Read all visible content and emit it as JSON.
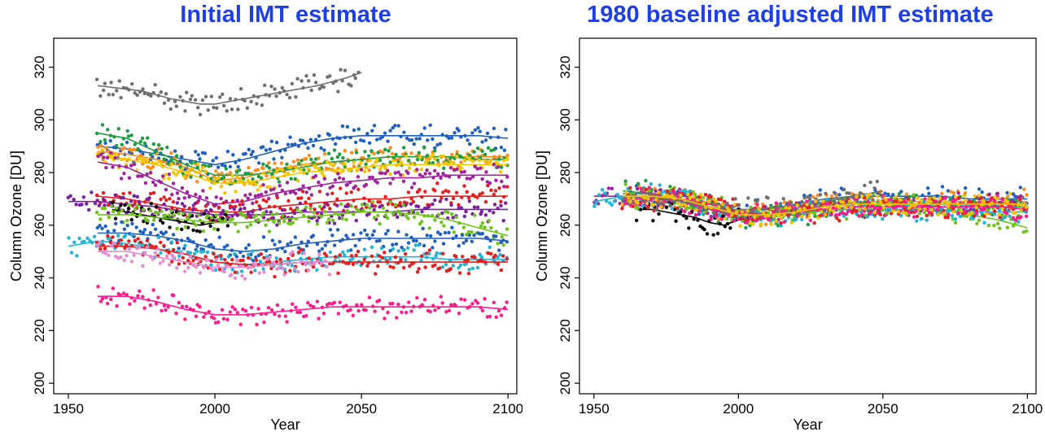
{
  "chart_data": [
    {
      "type": "scatter",
      "title": "Initial IMT estimate",
      "xlabel": "Year",
      "ylabel": "Column Ozone [DU]",
      "xlim": [
        1945,
        2103
      ],
      "ylim": [
        196,
        331
      ],
      "xticks": [
        1950,
        2000,
        2050,
        2100
      ],
      "yticks": [
        200,
        220,
        240,
        260,
        280,
        300,
        320
      ],
      "grid": false,
      "legend": "none",
      "series": [
        {
          "color": "#6e6e6e",
          "x": [
            1960,
            1975,
            1985,
            1995,
            2000,
            2005,
            2015,
            2025,
            2035,
            2045,
            2050
          ],
          "y": [
            313,
            311,
            308,
            306,
            306,
            307,
            309,
            311,
            313,
            316,
            318
          ]
        },
        {
          "color": "#1f5fbf",
          "x": [
            1960,
            1970,
            1980,
            1990,
            2000,
            2010,
            2020,
            2030,
            2040,
            2050,
            2060,
            2070,
            2080,
            2090,
            2100
          ],
          "y": [
            290,
            289,
            287,
            285,
            283,
            285,
            288,
            291,
            293,
            294,
            294,
            294,
            294,
            294,
            293
          ]
        },
        {
          "color": "#ff8c1a",
          "x": [
            1960,
            1970,
            1980,
            1990,
            2000,
            2010,
            2020,
            2030,
            2040,
            2050,
            2060,
            2070,
            2080,
            2090,
            2100
          ],
          "y": [
            288,
            287,
            285,
            282,
            277,
            278,
            281,
            283,
            284,
            285,
            286,
            286,
            286,
            286,
            286
          ]
        },
        {
          "color": "#1a9e3f",
          "x": [
            1960,
            1970,
            1980,
            1990,
            2000,
            2010,
            2020,
            2030,
            2040,
            2050,
            2060,
            2070,
            2080,
            2090,
            2100
          ],
          "y": [
            295,
            293,
            288,
            283,
            279,
            279,
            280,
            282,
            284,
            285,
            286,
            286,
            286,
            285,
            285
          ]
        },
        {
          "color": "#f5c400",
          "x": [
            1960,
            1970,
            1980,
            1990,
            2000,
            2010,
            2020,
            2030,
            2040,
            2050,
            2060,
            2070,
            2080,
            2090,
            2100
          ],
          "y": [
            286,
            285,
            283,
            280,
            276,
            276,
            278,
            280,
            281,
            282,
            283,
            283,
            283,
            283,
            283
          ]
        },
        {
          "color": "#a0229f",
          "x": [
            1960,
            1970,
            1980,
            1990,
            2000,
            2010,
            2020,
            2030,
            2040,
            2050,
            2060,
            2070,
            2080,
            2090,
            2100
          ],
          "y": [
            284,
            282,
            277,
            272,
            268,
            269,
            272,
            274,
            276,
            277,
            278,
            278,
            279,
            279,
            279
          ]
        },
        {
          "color": "#e81c1c",
          "x": [
            1960,
            1970,
            1980,
            1990,
            2000,
            2010,
            2020,
            2030,
            2040,
            2050,
            2060,
            2070,
            2080,
            2090,
            2100
          ],
          "y": [
            271,
            270,
            268,
            266,
            265,
            265,
            267,
            268,
            269,
            270,
            270,
            271,
            271,
            271,
            271
          ]
        },
        {
          "color": "#7a1fa0",
          "x": [
            1950,
            1960,
            1970,
            1980,
            1990,
            2000,
            2010,
            2020,
            2030,
            2040,
            2050,
            2060,
            2070,
            2080,
            2090,
            2100
          ],
          "y": [
            269,
            269,
            268,
            267,
            265,
            264,
            264,
            264,
            265,
            265,
            265,
            265,
            266,
            266,
            266,
            266
          ]
        },
        {
          "color": "#000000",
          "x": [
            1965,
            1970,
            1975,
            1980,
            1985,
            1990,
            1995,
            2000,
            2005
          ],
          "y": [
            266,
            265,
            264,
            263,
            262,
            261,
            260,
            261,
            262
          ]
        },
        {
          "color": "#6fc41a",
          "x": [
            1960,
            1970,
            1980,
            1990,
            2000,
            2010,
            2020,
            2030,
            2040,
            2050,
            2060,
            2070,
            2080,
            2090,
            2100
          ],
          "y": [
            264,
            264,
            263,
            262,
            261,
            261,
            262,
            263,
            264,
            265,
            265,
            264,
            262,
            259,
            256
          ]
        },
        {
          "color": "#1f5fbf",
          "x": [
            1960,
            1970,
            1980,
            1990,
            2000,
            2010,
            2020,
            2030,
            2040,
            2050,
            2060,
            2070,
            2080,
            2090,
            2100
          ],
          "y": [
            257,
            257,
            256,
            254,
            251,
            250,
            251,
            253,
            254,
            255,
            255,
            255,
            255,
            255,
            254
          ]
        },
        {
          "color": "#20b5d6",
          "x": [
            1950,
            1960,
            1970,
            1980,
            1990,
            2000,
            2010,
            2020,
            2030,
            2040,
            2050,
            2060,
            2070,
            2080,
            2090,
            2100
          ],
          "y": [
            252,
            254,
            253,
            251,
            249,
            246,
            245,
            246,
            247,
            248,
            248,
            248,
            248,
            247,
            247,
            247
          ]
        },
        {
          "color": "#e81c1c",
          "x": [
            1960,
            1970,
            1980,
            1990,
            2000,
            2010,
            2020,
            2030,
            2040,
            2050,
            2060,
            2070,
            2080,
            2090,
            2100
          ],
          "y": [
            252,
            252,
            251,
            249,
            246,
            245,
            245,
            246,
            246,
            246,
            246,
            246,
            246,
            246,
            246
          ]
        },
        {
          "color": "#e68ad1",
          "x": [
            1960,
            1970,
            1980,
            1990,
            2000,
            2010,
            2020,
            2030,
            2040
          ],
          "y": [
            250,
            250,
            248,
            246,
            244,
            244,
            245,
            246,
            246
          ]
        },
        {
          "color": "#ff1a8c",
          "x": [
            1960,
            1970,
            1980,
            1990,
            2000,
            2010,
            2020,
            2030,
            2040,
            2050,
            2060,
            2070,
            2080,
            2090,
            2100
          ],
          "y": [
            233,
            233,
            231,
            228,
            226,
            226,
            227,
            228,
            229,
            229,
            229,
            229,
            229,
            229,
            228
          ]
        }
      ]
    },
    {
      "type": "scatter",
      "title": "1980 baseline adjusted IMT estimate",
      "xlabel": "Year",
      "ylabel": "Column Ozone [DU]",
      "xlim": [
        1945,
        2103
      ],
      "ylim": [
        196,
        331
      ],
      "xticks": [
        1950,
        2000,
        2050,
        2100
      ],
      "yticks": [
        200,
        220,
        240,
        260,
        280,
        300,
        320
      ],
      "grid": false,
      "legend": "none",
      "series": [
        {
          "color": "#1f5fbf",
          "x": [
            1960,
            1970,
            1980,
            1990,
            2000,
            2010,
            2020,
            2030,
            2040,
            2050,
            2060,
            2070,
            2080,
            2090,
            2100
          ],
          "y": [
            272,
            272,
            270,
            267,
            265,
            266,
            268,
            270,
            271,
            271,
            271,
            271,
            270,
            270,
            270
          ]
        },
        {
          "color": "#ff8c1a",
          "x": [
            1960,
            1970,
            1980,
            1990,
            2000,
            2010,
            2020,
            2030,
            2040,
            2050,
            2060,
            2070,
            2080,
            2090,
            2100
          ],
          "y": [
            271,
            271,
            270,
            267,
            263,
            264,
            266,
            268,
            269,
            269,
            269,
            269,
            269,
            269,
            269
          ]
        },
        {
          "color": "#1a9e3f",
          "x": [
            1960,
            1970,
            1980,
            1990,
            2000,
            2010,
            2020,
            2030,
            2040,
            2050,
            2060,
            2070,
            2080,
            2090,
            2100
          ],
          "y": [
            273,
            272,
            270,
            266,
            263,
            263,
            264,
            266,
            267,
            268,
            268,
            268,
            268,
            267,
            267
          ]
        },
        {
          "color": "#a0229f",
          "x": [
            1950,
            1960,
            1970,
            1980,
            1990,
            2000,
            2010,
            2020,
            2030,
            2040,
            2050,
            2060,
            2070,
            2080,
            2090,
            2100
          ],
          "y": [
            271,
            271,
            271,
            270,
            267,
            264,
            264,
            265,
            266,
            267,
            267,
            268,
            268,
            268,
            268,
            268
          ]
        },
        {
          "color": "#000000",
          "x": [
            1965,
            1970,
            1975,
            1980,
            1985,
            1990,
            1995,
            2000,
            2005
          ],
          "y": [
            266,
            266,
            265,
            264,
            263,
            261,
            260,
            262,
            263
          ]
        },
        {
          "color": "#6fc41a",
          "x": [
            1960,
            1970,
            1980,
            1990,
            2000,
            2010,
            2020,
            2030,
            2040,
            2050,
            2060,
            2070,
            2080,
            2090,
            2100
          ],
          "y": [
            271,
            271,
            270,
            267,
            264,
            264,
            265,
            266,
            267,
            268,
            267,
            266,
            264,
            262,
            259
          ]
        },
        {
          "color": "#20b5d6",
          "x": [
            1950,
            1960,
            1970,
            1980,
            1990,
            2000,
            2010,
            2020,
            2030,
            2040,
            2050,
            2060,
            2070,
            2080,
            2090,
            2100
          ],
          "y": [
            269,
            271,
            271,
            270,
            268,
            265,
            264,
            265,
            266,
            266,
            266,
            266,
            266,
            265,
            265,
            265
          ]
        },
        {
          "color": "#e81c1c",
          "x": [
            1960,
            1970,
            1980,
            1990,
            2000,
            2010,
            2020,
            2030,
            2040,
            2050,
            2060,
            2070,
            2080,
            2090,
            2100
          ],
          "y": [
            270,
            270,
            270,
            268,
            265,
            264,
            265,
            266,
            267,
            267,
            267,
            267,
            267,
            267,
            266
          ]
        },
        {
          "color": "#ff1a8c",
          "x": [
            1960,
            1970,
            1980,
            1990,
            2000,
            2010,
            2020,
            2030,
            2040,
            2050,
            2060,
            2070,
            2080,
            2090,
            2100
          ],
          "y": [
            270,
            270,
            269,
            266,
            264,
            264,
            265,
            266,
            267,
            267,
            267,
            267,
            267,
            267,
            266
          ]
        },
        {
          "color": "#6e6e6e",
          "x": [
            1960,
            1975,
            1985,
            1995,
            2005,
            2015,
            2025,
            2035,
            2045,
            2050
          ],
          "y": [
            271,
            270,
            268,
            266,
            266,
            267,
            268,
            270,
            272,
            273
          ]
        },
        {
          "color": "#f5c400",
          "x": [
            1960,
            1970,
            1980,
            1990,
            2000,
            2010,
            2020,
            2030,
            2040,
            2050,
            2060,
            2070,
            2080,
            2090,
            2100
          ],
          "y": [
            271,
            271,
            270,
            267,
            264,
            264,
            265,
            267,
            268,
            268,
            268,
            268,
            268,
            268,
            268
          ]
        }
      ]
    }
  ]
}
